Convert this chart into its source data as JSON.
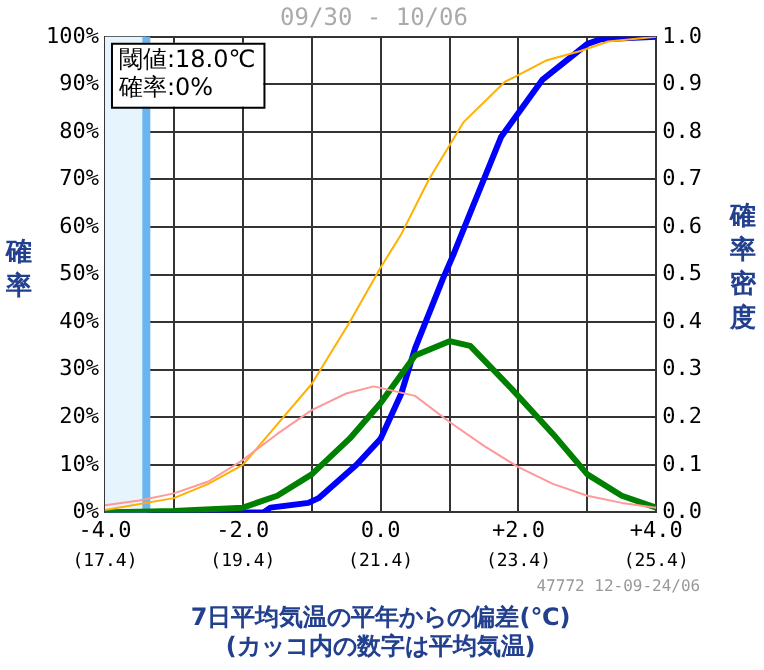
{
  "chart_data": {
    "type": "line",
    "title": "09/30 - 10/06",
    "xlabel": "7日平均気温の平年からの偏差(℃)\n(カッコ内の数字は平均気温)",
    "ylabel": "確率",
    "y2label": "確率密度",
    "xlim": [
      -4,
      4
    ],
    "xticks": [
      {
        "value": -4,
        "label": "-4.0"
      },
      {
        "value": -3,
        "label": null
      },
      {
        "value": -2,
        "label": "-2.0"
      },
      {
        "value": -1,
        "label": null
      },
      {
        "value": 0,
        "label": "0.0"
      },
      {
        "value": 1,
        "label": null
      },
      {
        "value": 2,
        "label": "+2.0"
      },
      {
        "value": 3,
        "label": null
      },
      {
        "value": 4,
        "label": "+4.0"
      }
    ],
    "x2lim": [
      17.4,
      25.4
    ],
    "x2ticks": [
      {
        "value": 17.4,
        "label": "(17.4)"
      },
      {
        "value": 19.4,
        "label": "(19.4)"
      },
      {
        "value": 21.4,
        "label": "(21.4)"
      },
      {
        "value": 23.4,
        "label": "(23.4)"
      },
      {
        "value": 25.4,
        "label": "(25.4)"
      }
    ],
    "ylim": [
      0,
      100
    ],
    "yticks": [
      {
        "value": 0,
        "label": "0%"
      },
      {
        "value": 10,
        "label": "10%"
      },
      {
        "value": 20,
        "label": "20%"
      },
      {
        "value": 30,
        "label": "30%"
      },
      {
        "value": 40,
        "label": "40%"
      },
      {
        "value": 50,
        "label": "50%"
      },
      {
        "value": 60,
        "label": "60%"
      },
      {
        "value": 70,
        "label": "70%"
      },
      {
        "value": 80,
        "label": "80%"
      },
      {
        "value": 90,
        "label": "90%"
      },
      {
        "value": 100,
        "label": "100%"
      }
    ],
    "y2lim": [
      0,
      1
    ],
    "y2ticks": [
      {
        "value": 0,
        "label": "0.0"
      },
      {
        "value": 0.1,
        "label": "0.1"
      },
      {
        "value": 0.2,
        "label": "0.2"
      },
      {
        "value": 0.3,
        "label": "0.3"
      },
      {
        "value": 0.4,
        "label": "0.4"
      },
      {
        "value": 0.5,
        "label": "0.5"
      },
      {
        "value": 0.6,
        "label": "0.6"
      },
      {
        "value": 0.7,
        "label": "0.7"
      },
      {
        "value": 0.8,
        "label": "0.8"
      },
      {
        "value": 0.9,
        "label": "0.9"
      },
      {
        "value": 1,
        "label": "1.0"
      }
    ],
    "series": [
      {
        "color": "#ff9999",
        "axis": "y2",
        "x": [
          -4,
          -3.5,
          -3,
          -2.5,
          -2,
          -1.5,
          -1,
          -0.5,
          -0.1,
          0.5,
          1,
          1.5,
          2,
          2.5,
          3,
          3.5,
          4
        ],
        "values": [
          0.015,
          0.025,
          0.04,
          0.065,
          0.11,
          0.165,
          0.215,
          0.25,
          0.265,
          0.245,
          0.19,
          0.14,
          0.095,
          0.06,
          0.035,
          0.02,
          0.01
        ]
      },
      {
        "color": "#ffb000",
        "x": [
          -4,
          -3,
          -2.5,
          -2,
          -1.5,
          -1,
          -0.45,
          0,
          0.3,
          0.7,
          1.2,
          1.8,
          2.4,
          2.9,
          3.3,
          4
        ],
        "values": [
          0.5,
          3,
          6,
          10,
          18.5,
          27,
          40,
          51.5,
          58.5,
          70,
          82,
          90.5,
          95,
          97,
          99,
          100
        ]
      },
      {
        "color": "#008000",
        "axis": "y2",
        "x": [
          -4,
          -3,
          -2,
          -1.5,
          -1,
          -0.45,
          0,
          0.5,
          1,
          1.3,
          1.9,
          2.5,
          3,
          3.5,
          4
        ],
        "values": [
          0,
          0.003,
          0.01,
          0.035,
          0.08,
          0.155,
          0.23,
          0.33,
          0.36,
          0.35,
          0.26,
          0.165,
          0.08,
          0.035,
          0.01
        ]
      },
      {
        "color": "#0000ff",
        "x": [
          -4,
          -1.7,
          -1.6,
          -1.05,
          -0.9,
          -0.35,
          0,
          0.3,
          0.5,
          0.9,
          1.05,
          1.3,
          1.75,
          2.35,
          3,
          3.2,
          4
        ],
        "values": [
          0,
          0,
          1,
          2,
          3,
          10,
          15.5,
          25,
          34.5,
          49,
          54,
          63,
          79,
          91,
          98.5,
          99.5,
          100
        ]
      }
    ],
    "bands": [
      {
        "axis": "x",
        "from": -4,
        "to": -3.4,
        "color": "#e6f5fd"
      }
    ],
    "ref_lines": [
      {
        "axis": "x",
        "value": -3.4,
        "color": "#6ab4f0"
      }
    ],
    "annotations": [
      "閾値:18.0℃\n確率:0%",
      "47772 12-09-24/06"
    ],
    "grid": true,
    "legend": false,
    "marker": "none",
    "line_style": "solid"
  }
}
